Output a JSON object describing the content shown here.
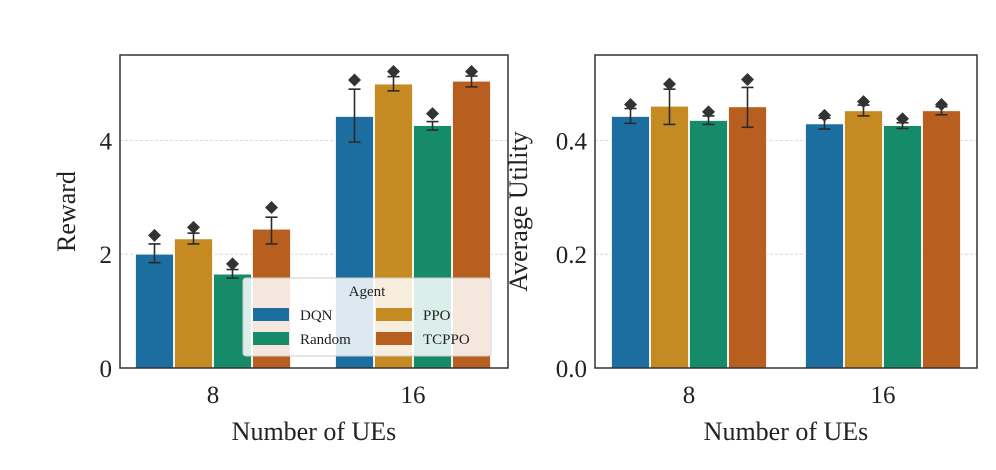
{
  "chart_data": [
    {
      "type": "bar",
      "categories": [
        "8",
        "16"
      ],
      "xlabel": "Number of UEs",
      "ylabel": "Reward",
      "ylim": [
        0,
        5.5
      ],
      "yticks": [
        0,
        2,
        4
      ],
      "ytick_labels": [
        "0",
        "2",
        "4"
      ],
      "grid": "y-dashed",
      "series": [
        {
          "name": "DQN",
          "values": [
            2.0,
            4.42
          ],
          "err": [
            [
              1.85,
              2.18
            ],
            [
              3.97,
              4.9
            ]
          ],
          "max": [
            2.33,
            5.06
          ]
        },
        {
          "name": "PPO",
          "values": [
            2.27,
            4.99
          ],
          "err": [
            [
              2.18,
              2.37
            ],
            [
              4.87,
              5.12
            ]
          ],
          "max": [
            2.47,
            5.21
          ]
        },
        {
          "name": "Random",
          "values": [
            1.65,
            4.26
          ],
          "err": [
            [
              1.58,
              1.73
            ],
            [
              4.18,
              4.33
            ]
          ],
          "max": [
            1.83,
            4.47
          ]
        },
        {
          "name": "TCPPO",
          "values": [
            2.44,
            5.04
          ],
          "err": [
            [
              2.18,
              2.65
            ],
            [
              4.94,
              5.13
            ]
          ],
          "max": [
            2.82,
            5.21
          ]
        }
      ],
      "legend": {
        "title": "Agent",
        "placement": "lower-right",
        "entries": [
          "DQN",
          "PPO",
          "Random",
          "TCPPO"
        ]
      }
    },
    {
      "type": "bar",
      "categories": [
        "8",
        "16"
      ],
      "xlabel": "Number of UEs",
      "ylabel": "Average Utility",
      "ylim": [
        0,
        0.55
      ],
      "yticks": [
        0,
        0.2,
        0.4
      ],
      "ytick_labels": [
        "0.0",
        "0.2",
        "0.4"
      ],
      "grid": "y-dashed",
      "series": [
        {
          "name": "DQN",
          "values": [
            0.442,
            0.429
          ],
          "err": [
            [
              0.43,
              0.456
            ],
            [
              0.42,
              0.439
            ]
          ],
          "max": [
            0.463,
            0.444
          ]
        },
        {
          "name": "PPO",
          "values": [
            0.46,
            0.452
          ],
          "err": [
            [
              0.428,
              0.49
            ],
            [
              0.443,
              0.462
            ]
          ],
          "max": [
            0.499,
            0.468
          ]
        },
        {
          "name": "Random",
          "values": [
            0.435,
            0.426
          ],
          "err": [
            [
              0.428,
              0.443
            ],
            [
              0.421,
              0.431
            ]
          ],
          "max": [
            0.45,
            0.438
          ]
        },
        {
          "name": "TCPPO",
          "values": [
            0.459,
            0.452
          ],
          "err": [
            [
              0.423,
              0.493
            ],
            [
              0.445,
              0.459
            ]
          ],
          "max": [
            0.507,
            0.463
          ]
        }
      ]
    }
  ],
  "colors": {
    "DQN": "#1b6e9f",
    "PPO": "#c58a22",
    "Random": "#158b6a",
    "TCPPO": "#b85f1f"
  }
}
